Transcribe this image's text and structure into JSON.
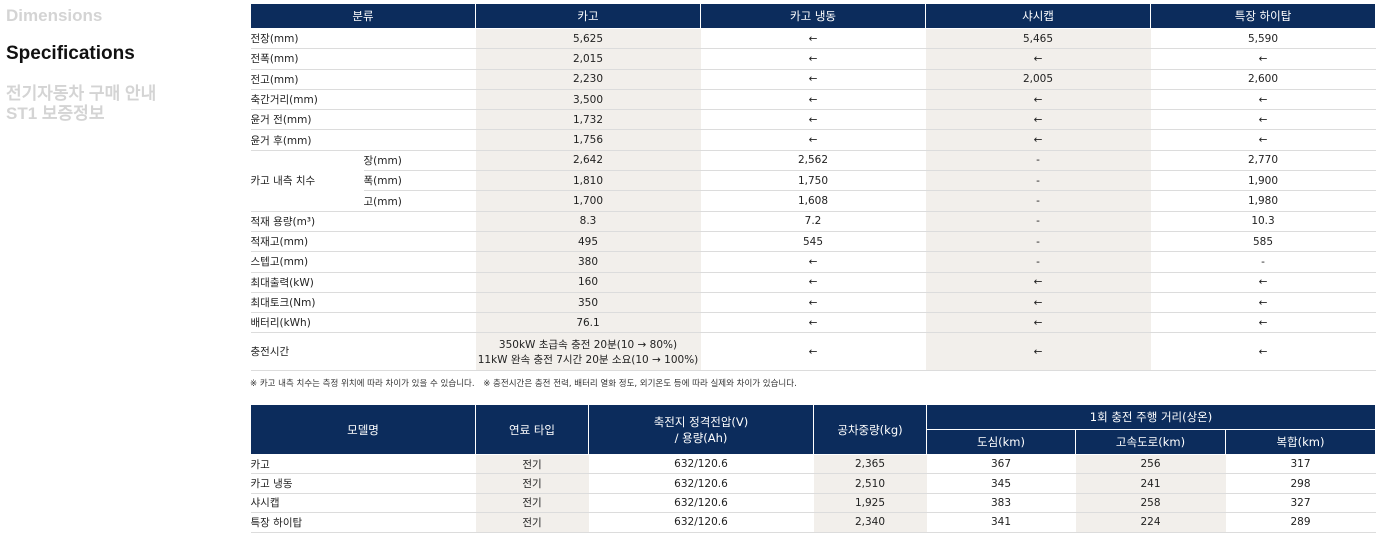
{
  "nav": [
    "Dimensions",
    "Specifications",
    "전기자동차 구매 안내",
    "ST1 보증정보"
  ],
  "spec_table": {
    "header": [
      "분류",
      "카고",
      "카고 냉동",
      "샤시캡",
      "특장 하이탑"
    ],
    "rows": [
      [
        "전장(mm)",
        "5,625",
        "←",
        "5,465",
        "5,590"
      ],
      [
        "전폭(mm)",
        "2,015",
        "←",
        "←",
        "←"
      ],
      [
        "전고(mm)",
        "2,230",
        "←",
        "2,005",
        "2,600"
      ],
      [
        "축간거리(mm)",
        "3,500",
        "←",
        "←",
        "←"
      ],
      [
        "윤거 전(mm)",
        "1,732",
        "←",
        "←",
        "←"
      ],
      [
        "윤거 후(mm)",
        "1,756",
        "←",
        "←",
        "←"
      ],
      {
        "group": "카고 내측 치수",
        "rows": [
          [
            "장(mm)",
            "2,642",
            "2,562",
            "-",
            "2,770"
          ],
          [
            "폭(mm)",
            "1,810",
            "1,750",
            "-",
            "1,900"
          ],
          [
            "고(mm)",
            "1,700",
            "1,608",
            "-",
            "1,980"
          ]
        ]
      },
      [
        "적재 용량(m³)",
        "8.3",
        "7.2",
        "-",
        "10.3"
      ],
      [
        "적재고(mm)",
        "495",
        "545",
        "-",
        "585"
      ],
      [
        "스텝고(mm)",
        "380",
        "←",
        "-",
        "-"
      ],
      [
        "최대출력(kW)",
        "160",
        "←",
        "←",
        "←"
      ],
      [
        "최대토크(Nm)",
        "350",
        "←",
        "←",
        "←"
      ],
      [
        "배터리(kWh)",
        "76.1",
        "←",
        "←",
        "←"
      ],
      [
        "충전시간",
        [
          "350kW 초급속 충전 20분(10 → 80%)",
          "11kW 완속 충전 7시간 20분 소요(10 → 100%)"
        ],
        "←",
        "←",
        "←"
      ]
    ]
  },
  "notes": [
    "※ 카고 내측 치수는 측정 위치에 따라 차이가 있을 수 있습니다.",
    "※ 충전시간은 충전 전력, 배터리 열화 정도, 외기온도 등에 따라 실제와 차이가 있습니다."
  ],
  "range_table": {
    "header": [
      "모델명",
      "연료 타입",
      [
        "축전지 정격전압(V)",
        "/ 용량(Ah)"
      ],
      "공차중량(kg)",
      "1회 충전 주행 거리(상온)"
    ],
    "subheader": [
      "도심(km)",
      "고속도로(km)",
      "복합(km)"
    ],
    "rows": [
      [
        "카고",
        "전기",
        "632/120.6",
        "2,365",
        "367",
        "256",
        "317"
      ],
      [
        "카고 냉동",
        "전기",
        "632/120.6",
        "2,510",
        "345",
        "241",
        "298"
      ],
      [
        "샤시캡",
        "전기",
        "632/120.6",
        "1,925",
        "383",
        "258",
        "327"
      ],
      [
        "특장 하이탑",
        "전기",
        "632/120.6",
        "2,340",
        "341",
        "224",
        "289"
      ]
    ]
  }
}
